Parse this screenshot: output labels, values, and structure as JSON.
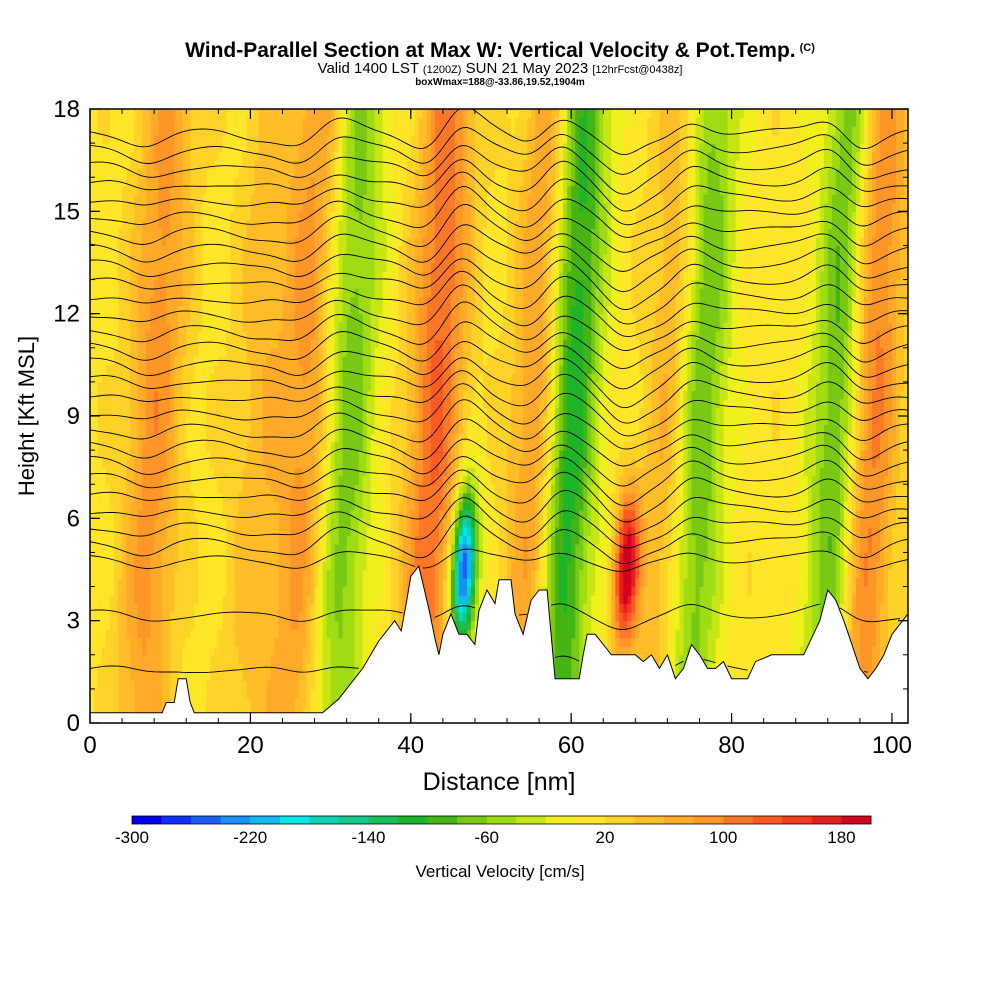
{
  "header": {
    "title": "Wind-Parallel Section at Max W: Vertical Velocity & Pot.Temp.",
    "copyright": "(C)",
    "valid_prefix": "Valid 1400 LST",
    "valid_utc": "(1200Z)",
    "valid_date": "SUN 21 May 2023",
    "forecast_info": "[12hrFcst@0438z]",
    "box_info": "boxWmax=188@-33.86,19.52,1904m"
  },
  "chart_data": {
    "type": "heatmap",
    "title": "Wind-Parallel Section at Max W: Vertical Velocity & Pot.Temp.",
    "xlabel": "Distance [nm]",
    "ylabel": "Height [Kft MSL]",
    "xlim": [
      0,
      102
    ],
    "ylim": [
      0,
      18
    ],
    "x_ticks": [
      "0",
      "20",
      "40",
      "60",
      "80",
      "100"
    ],
    "y_ticks": [
      "0",
      "3",
      "6",
      "9",
      "12",
      "15",
      "18"
    ],
    "colorbar": {
      "label": "Vertical Velocity [cm/s]",
      "range": [
        -300,
        200
      ],
      "tick_labels": [
        "-300",
        "-220",
        "-140",
        "-60",
        "20",
        "100",
        "180"
      ],
      "colors": [
        "#0000ee",
        "#1030f5",
        "#1a60f8",
        "#1890f5",
        "#14b8f0",
        "#00e6e6",
        "#10d2b4",
        "#14c88c",
        "#18be5a",
        "#1eb428",
        "#46b414",
        "#78c814",
        "#a0dc14",
        "#c8e614",
        "#f0f01e",
        "#ffe628",
        "#ffd228",
        "#ffbe28",
        "#ffaa28",
        "#ff9628",
        "#ff7828",
        "#ff5a23",
        "#f53c1e",
        "#e61e1e",
        "#d2001e"
      ]
    },
    "terrain_kft": [
      [
        0,
        0.3
      ],
      [
        9,
        0.3
      ],
      [
        9.5,
        0.6
      ],
      [
        10.5,
        0.6
      ],
      [
        11,
        1.3
      ],
      [
        12,
        1.3
      ],
      [
        12.5,
        0.6
      ],
      [
        13,
        0.3
      ],
      [
        29,
        0.3
      ],
      [
        30,
        0.5
      ],
      [
        31,
        0.7
      ],
      [
        32,
        1.0
      ],
      [
        33,
        1.3
      ],
      [
        34,
        1.6
      ],
      [
        35,
        2.0
      ],
      [
        36,
        2.4
      ],
      [
        37,
        2.7
      ],
      [
        38,
        3.0
      ],
      [
        38.8,
        2.7
      ],
      [
        39.5,
        3.6
      ],
      [
        40,
        4.3
      ],
      [
        41,
        4.6
      ],
      [
        42.3,
        3.3
      ],
      [
        43,
        2.5
      ],
      [
        43.5,
        2.0
      ],
      [
        44,
        2.6
      ],
      [
        45,
        3.2
      ],
      [
        46,
        2.6
      ],
      [
        47,
        2.6
      ],
      [
        48,
        2.3
      ],
      [
        48.5,
        3.3
      ],
      [
        49.5,
        3.9
      ],
      [
        50.5,
        3.5
      ],
      [
        51,
        4.2
      ],
      [
        52.5,
        4.2
      ],
      [
        53,
        3.2
      ],
      [
        54,
        2.6
      ],
      [
        55,
        3.6
      ],
      [
        56,
        3.9
      ],
      [
        57,
        3.9
      ],
      [
        58,
        1.3
      ],
      [
        61,
        1.3
      ],
      [
        61.5,
        2.0
      ],
      [
        62,
        2.6
      ],
      [
        63,
        2.6
      ],
      [
        64,
        2.3
      ],
      [
        65,
        2.0
      ],
      [
        68,
        2.0
      ],
      [
        69,
        1.8
      ],
      [
        70,
        2.0
      ],
      [
        71,
        1.6
      ],
      [
        72,
        2.0
      ],
      [
        73,
        1.3
      ],
      [
        74,
        1.6
      ],
      [
        75,
        2.3
      ],
      [
        76,
        2.0
      ],
      [
        77,
        1.6
      ],
      [
        78,
        1.6
      ],
      [
        79,
        1.8
      ],
      [
        80,
        1.3
      ],
      [
        82,
        1.3
      ],
      [
        83,
        1.8
      ],
      [
        85,
        2.0
      ],
      [
        89,
        2.0
      ],
      [
        90,
        2.5
      ],
      [
        91,
        3.0
      ],
      [
        92,
        3.9
      ],
      [
        93,
        3.6
      ],
      [
        94,
        3.0
      ],
      [
        95,
        2.3
      ],
      [
        96,
        1.6
      ],
      [
        97,
        1.3
      ],
      [
        98,
        1.6
      ],
      [
        99,
        2.0
      ],
      [
        100,
        2.6
      ],
      [
        102,
        3.2
      ]
    ],
    "theta_isentrope_values": [
      25,
      28,
      30,
      31,
      32,
      33,
      34,
      35,
      36,
      37,
      38,
      39,
      40,
      41,
      42,
      43,
      44,
      45,
      46,
      47,
      48,
      50,
      52,
      54,
      56,
      58,
      60,
      62,
      64
    ],
    "updraft_columns": [
      {
        "x": 7,
        "w": 80
      },
      {
        "x": 20,
        "w": 40
      },
      {
        "x": 26,
        "w": 80
      },
      {
        "x": 42,
        "w": 110
      },
      {
        "x": 55,
        "w": 95
      },
      {
        "x": 66.6,
        "w": 188
      },
      {
        "x": 72,
        "w": 90
      },
      {
        "x": 96,
        "w": 120
      }
    ],
    "downdraft_columns": [
      {
        "x": 31,
        "w": -90
      },
      {
        "x": 46.3,
        "w": -290
      },
      {
        "x": 58.6,
        "w": -150
      },
      {
        "x": 74.5,
        "w": -130
      },
      {
        "x": 92.5,
        "w": -120
      }
    ]
  }
}
